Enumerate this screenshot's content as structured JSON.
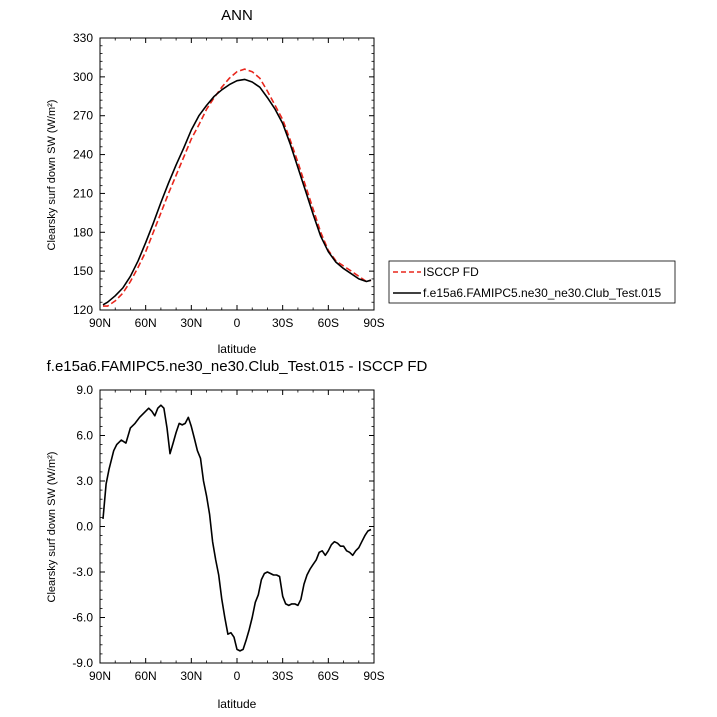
{
  "chart_data": [
    {
      "type": "line",
      "title": "ANN",
      "xlabel": "latitude",
      "ylabel": "Clearsky surf down SW (W/m²)",
      "xlim": [
        90,
        -90
      ],
      "ylim": [
        120,
        330
      ],
      "xticks": [
        90,
        60,
        30,
        0,
        -30,
        -60,
        -90
      ],
      "xtick_labels": [
        "90N",
        "60N",
        "30N",
        "0",
        "30S",
        "60S",
        "90S"
      ],
      "yticks": [
        120,
        150,
        180,
        210,
        240,
        270,
        300,
        330
      ],
      "ytick_labels": [
        "120",
        "150",
        "180",
        "210",
        "240",
        "270",
        "300",
        "330"
      ],
      "legend_position": "outside-right",
      "series": [
        {
          "name": "ISCCP FD",
          "color": "#e8261c",
          "dash": "dashed",
          "x": [
            88,
            85,
            80,
            75,
            70,
            65,
            60,
            55,
            50,
            45,
            40,
            35,
            30,
            25,
            20,
            15,
            10,
            5,
            0,
            -5,
            -10,
            -15,
            -20,
            -25,
            -30,
            -35,
            -40,
            -45,
            -50,
            -55,
            -60,
            -65,
            -70,
            -75,
            -80,
            -85,
            -88
          ],
          "y": [
            123,
            123,
            127,
            133,
            142,
            153,
            165,
            180,
            195,
            210,
            224,
            238,
            252,
            263,
            275,
            284,
            292,
            299,
            304,
            306,
            304,
            299,
            289,
            278,
            267,
            251,
            234,
            216,
            198,
            180,
            166,
            158,
            154,
            150,
            146,
            142,
            143
          ]
        },
        {
          "name": "f.e15a6.FAMIPC5.ne30_ne30.Club_Test.015",
          "color": "#000000",
          "dash": "solid",
          "x": [
            88,
            85,
            80,
            75,
            70,
            65,
            60,
            55,
            50,
            45,
            40,
            35,
            30,
            25,
            20,
            15,
            10,
            5,
            0,
            -5,
            -10,
            -15,
            -20,
            -25,
            -30,
            -35,
            -40,
            -45,
            -50,
            -55,
            -60,
            -65,
            -70,
            -75,
            -80,
            -85,
            -88
          ],
          "y": [
            124,
            126,
            131,
            137,
            146,
            158,
            172,
            187,
            203,
            218,
            232,
            245,
            259,
            270,
            278,
            285,
            290,
            294,
            297,
            298,
            296,
            292,
            284,
            275,
            264,
            248,
            230,
            212,
            194,
            177,
            165,
            157,
            152,
            148,
            144,
            142,
            143
          ]
        }
      ]
    },
    {
      "type": "line",
      "title": "f.e15a6.FAMIPC5.ne30_ne30.Club_Test.015 - ISCCP FD",
      "xlabel": "latitude",
      "ylabel": "Clearsky surf down SW (W/m²)",
      "xlim": [
        90,
        -90
      ],
      "ylim": [
        -9,
        9
      ],
      "xticks": [
        90,
        60,
        30,
        0,
        -30,
        -60,
        -90
      ],
      "xtick_labels": [
        "90N",
        "60N",
        "30N",
        "0",
        "30S",
        "60S",
        "90S"
      ],
      "yticks": [
        -9,
        -6,
        -3,
        0,
        3,
        6,
        9
      ],
      "ytick_labels": [
        "-9.0",
        "-6.0",
        "-3.0",
        "0.0",
        "3.0",
        "6.0",
        "9.0"
      ],
      "series": [
        {
          "color": "#000000",
          "x": [
            88,
            86,
            84,
            81,
            79,
            76,
            73,
            70,
            67,
            64,
            61,
            58,
            56,
            54,
            52,
            50,
            48,
            46,
            44,
            42,
            40,
            38,
            36,
            34,
            32,
            30,
            28,
            26,
            24,
            22,
            20,
            18,
            16,
            14,
            12,
            10,
            8,
            6,
            4,
            2,
            0,
            -2,
            -4,
            -6,
            -8,
            -10,
            -12,
            -14,
            -16,
            -18,
            -20,
            -22,
            -24,
            -26,
            -28,
            -30,
            -32,
            -34,
            -36,
            -38,
            -40,
            -42,
            -44,
            -46,
            -48,
            -50,
            -52,
            -54,
            -56,
            -58,
            -60,
            -62,
            -64,
            -66,
            -68,
            -70,
            -72,
            -74,
            -76,
            -78,
            -80,
            -82,
            -84,
            -86,
            -88
          ],
          "y": [
            0.5,
            2.8,
            3.8,
            5.0,
            5.4,
            5.7,
            5.5,
            6.5,
            6.8,
            7.2,
            7.5,
            7.8,
            7.6,
            7.3,
            7.8,
            8.0,
            7.8,
            6.5,
            4.8,
            5.5,
            6.2,
            6.8,
            6.7,
            6.8,
            7.2,
            6.6,
            5.8,
            5.0,
            4.5,
            3.0,
            2.0,
            0.8,
            -1.0,
            -2.2,
            -3.2,
            -4.8,
            -6.0,
            -7.1,
            -7.0,
            -7.3,
            -8.1,
            -8.2,
            -8.1,
            -7.5,
            -6.8,
            -6.0,
            -5.0,
            -4.5,
            -3.5,
            -3.1,
            -3.0,
            -3.1,
            -3.2,
            -3.2,
            -3.3,
            -4.6,
            -5.1,
            -5.2,
            -5.1,
            -5.1,
            -5.2,
            -4.8,
            -3.8,
            -3.2,
            -2.8,
            -2.5,
            -2.2,
            -1.7,
            -1.6,
            -1.9,
            -1.6,
            -1.2,
            -1.0,
            -1.1,
            -1.3,
            -1.3,
            -1.6,
            -1.7,
            -1.9,
            -1.6,
            -1.4,
            -1.0,
            -0.6,
            -0.3,
            -0.2
          ]
        }
      ]
    }
  ]
}
